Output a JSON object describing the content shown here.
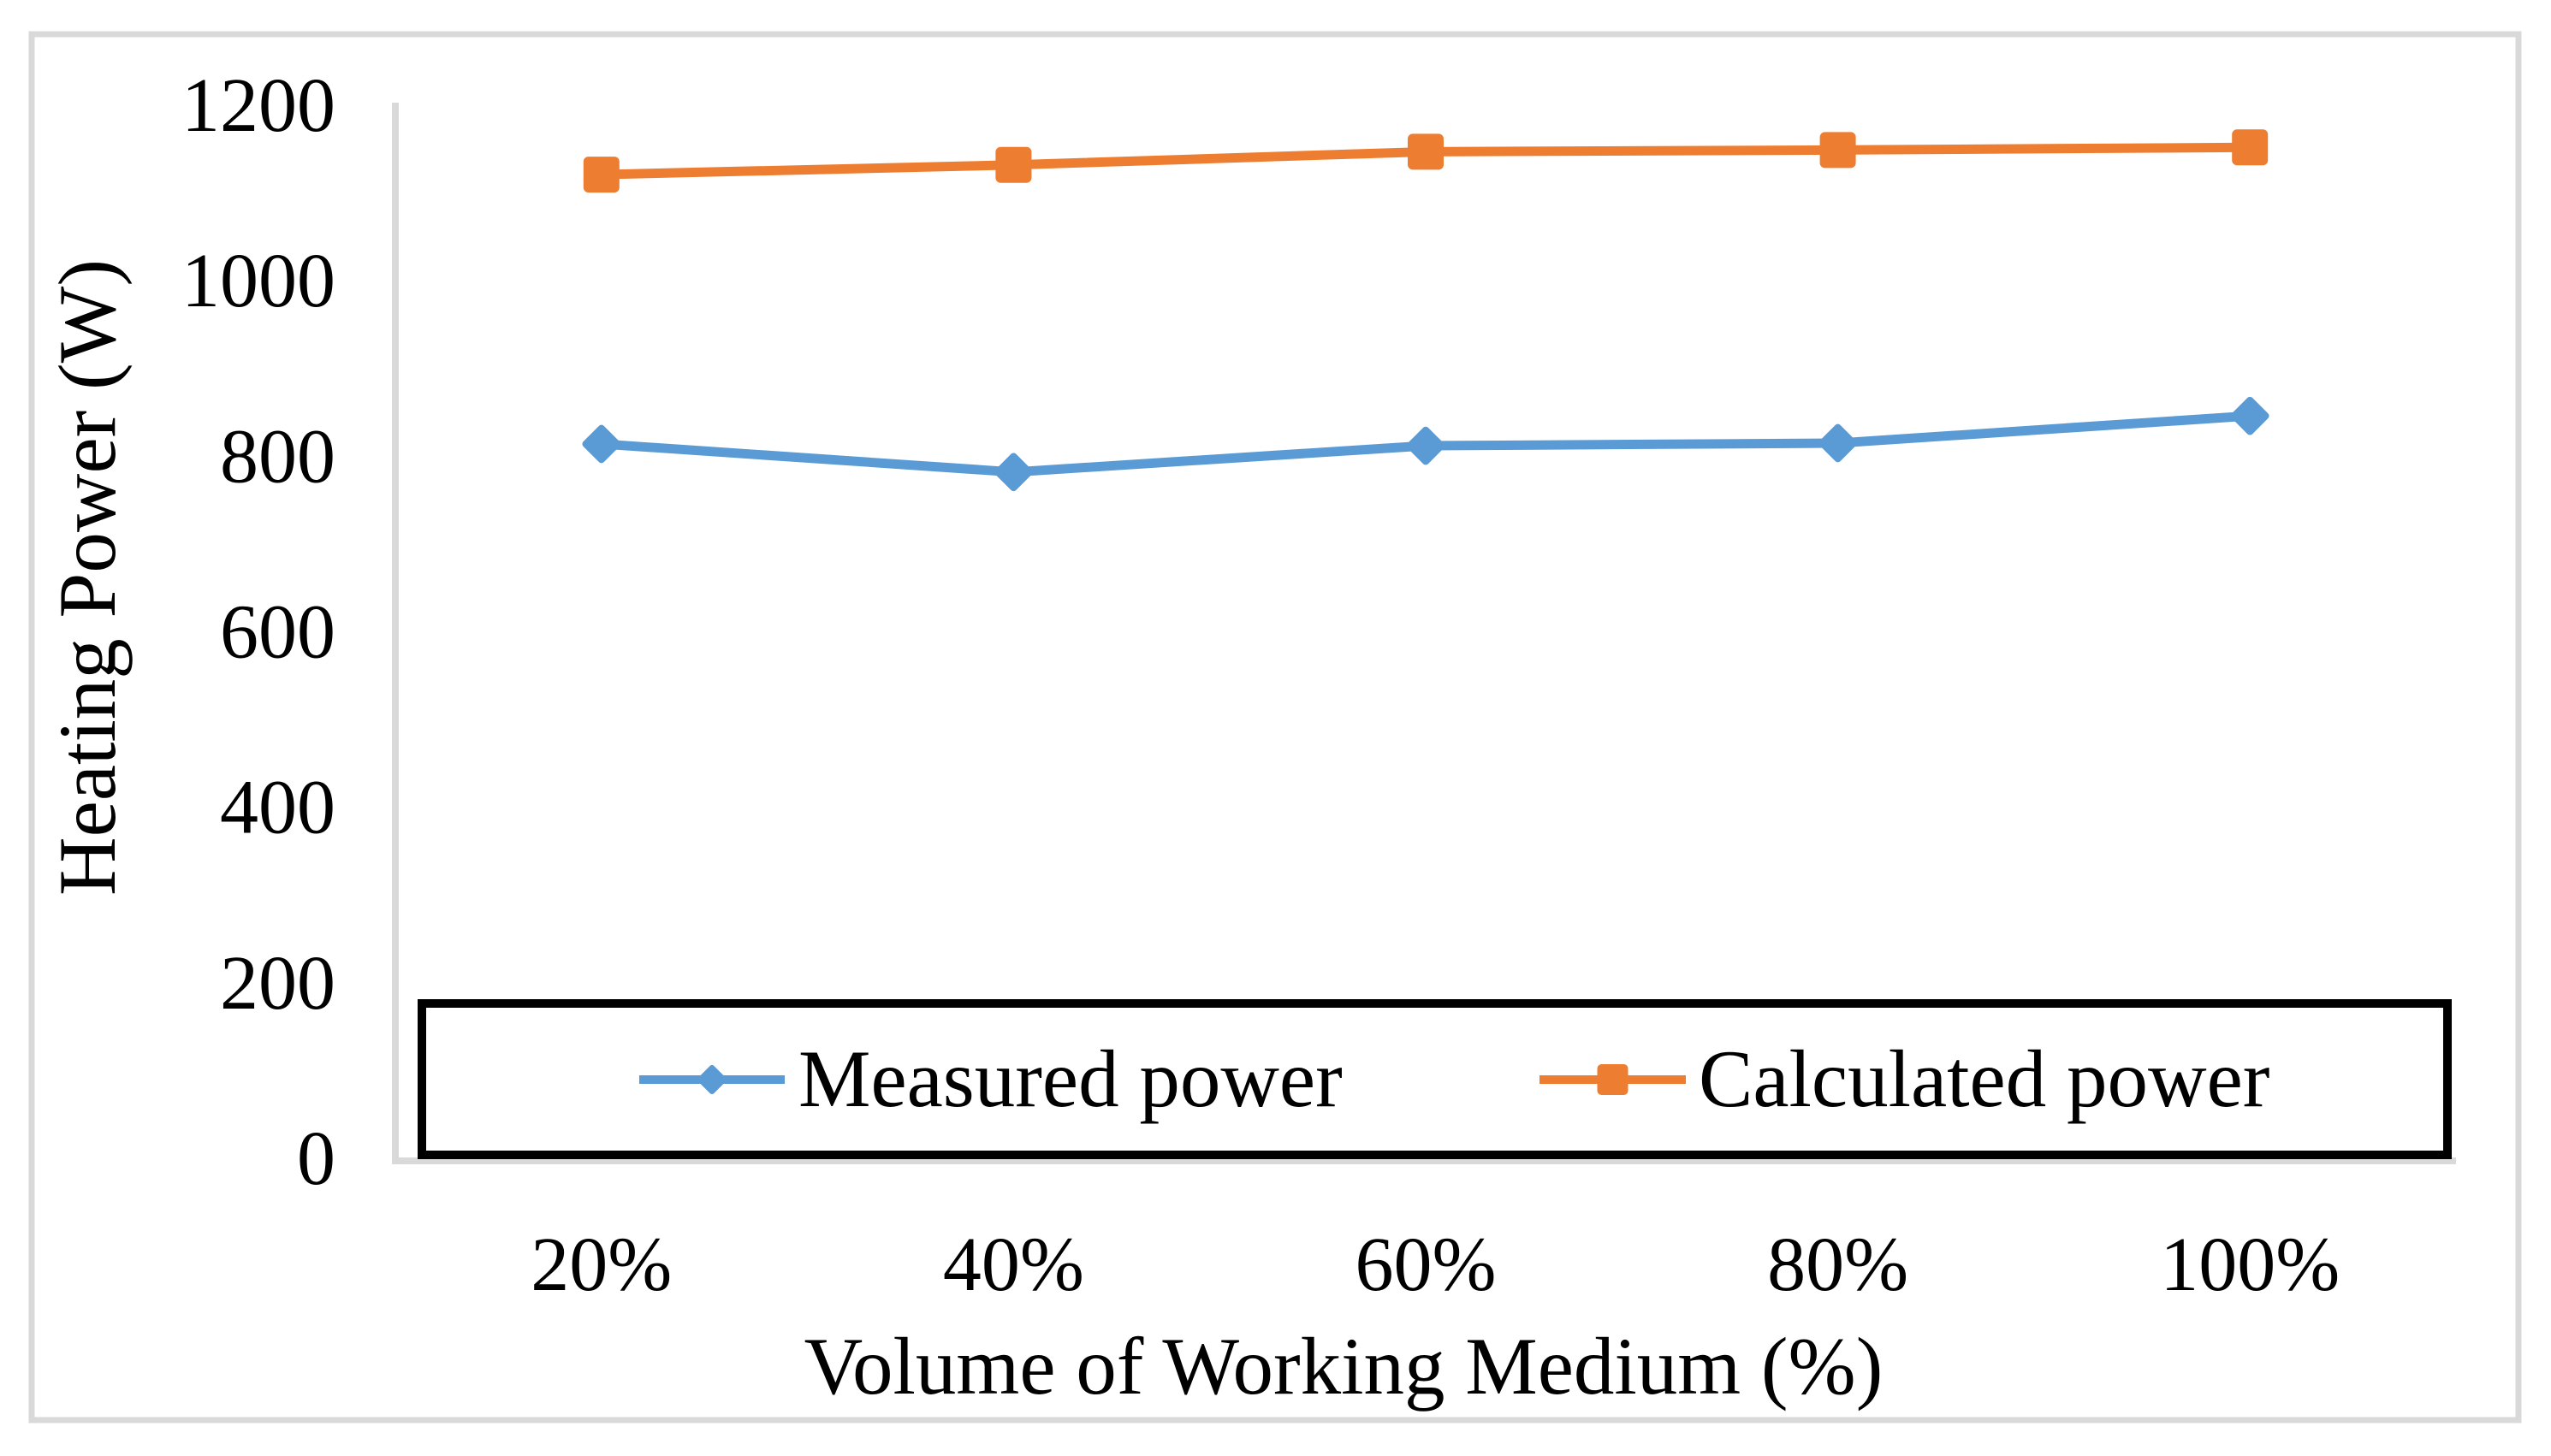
{
  "figure": {
    "background": "#FFFFFF",
    "border_color": "#D9D9D9"
  },
  "chart_data": {
    "type": "line",
    "title": "",
    "xlabel": "Volume of Working Medium (%)",
    "ylabel": "Heating Power (W)",
    "categories": [
      "20%",
      "40%",
      "60%",
      "80%",
      "100%"
    ],
    "series": [
      {
        "name": "Measured power",
        "marker": "diamond",
        "color": "#5B9BD5",
        "values": [
          813,
          781,
          811,
          814,
          845
        ]
      },
      {
        "name": "Calculated power",
        "marker": "square",
        "color": "#ED7D31",
        "values": [
          1120,
          1131,
          1146,
          1148,
          1151
        ]
      }
    ],
    "ylim": [
      0,
      1200
    ],
    "ytick_interval": 200,
    "yticks": [
      "0",
      "200",
      "400",
      "600",
      "800",
      "1000",
      "1200"
    ],
    "grid": false,
    "legend_position": "bottom-inside",
    "axis_color": "#D9D9D9",
    "text_color": "#000000",
    "legend_border_color": "#000000"
  }
}
